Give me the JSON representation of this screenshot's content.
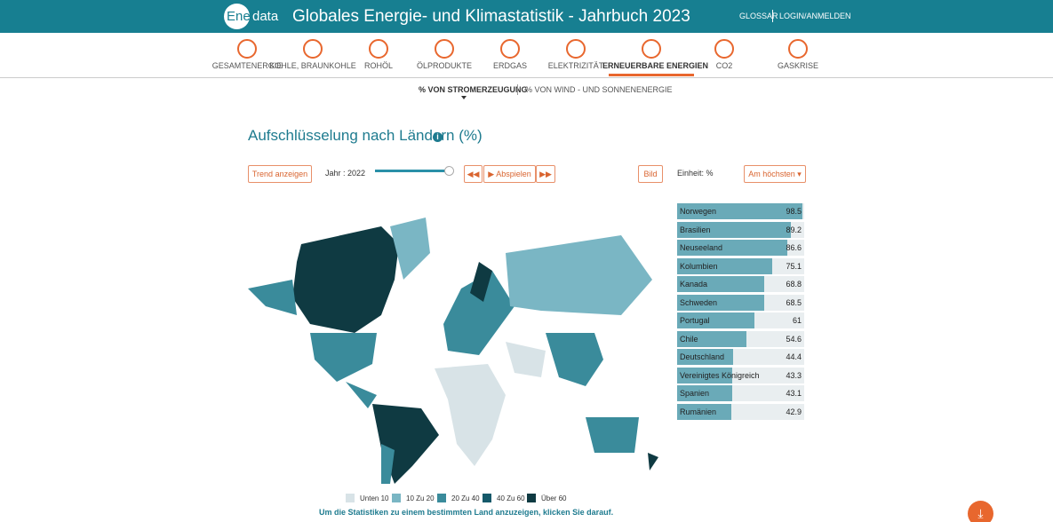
{
  "header": {
    "logo_left": "Ener",
    "logo_right": "data",
    "title": "Globales Energie- und Klimastatistik - Jahrbuch 2023",
    "links": [
      "GLOSSAR",
      "LOGIN/ANMELDEN"
    ]
  },
  "nav": {
    "items": [
      "GESAMTENERGIE",
      "KOHLE, BRAUNKOHLE",
      "ROHÖL",
      "ÖLPRODUKTE",
      "ERDGAS",
      "ELEKTRIZITÄT",
      "ERNEUERBARE ENERGIEN",
      "CO2",
      "GASKRISE"
    ],
    "active": 6
  },
  "subnav": {
    "items": [
      "% VON STROMERZEUGUNG",
      "% VON WIND - UND SONNENENERGIE"
    ],
    "active": 0
  },
  "section_title": "Aufschlüsselung nach Ländern (%)",
  "controls": {
    "trend": "Trend anzeigen",
    "year": "Jahr : 2022",
    "play": "Abspielen",
    "image": "Bild",
    "unit": "Einheit: %",
    "sort": "Am höchsten"
  },
  "ranking": {
    "color": "#6aaab8",
    "scale_max": 100,
    "rows": [
      {
        "name": "Norwegen",
        "value": 98.5
      },
      {
        "name": "Brasilien",
        "value": 89.2
      },
      {
        "name": "Neuseeland",
        "value": 86.6
      },
      {
        "name": "Kolumbien",
        "value": 75.1
      },
      {
        "name": "Kanada",
        "value": 68.8
      },
      {
        "name": "Schweden",
        "value": 68.5
      },
      {
        "name": "Portugal",
        "value": 61
      },
      {
        "name": "Chile",
        "value": 54.6
      },
      {
        "name": "Deutschland",
        "value": 44.4
      },
      {
        "name": "Vereinigtes Königreich",
        "value": 43.3
      },
      {
        "name": "Spanien",
        "value": 43.1
      },
      {
        "name": "Rumänien",
        "value": 42.9
      }
    ]
  },
  "legend": [
    {
      "label": "Unten 10",
      "color": "#d8e3e7"
    },
    {
      "label": "10 Zu 20",
      "color": "#7ab6c4"
    },
    {
      "label": "20 Zu 40",
      "color": "#3a8b9b"
    },
    {
      "label": "40 Zu 60",
      "color": "#15596a"
    },
    {
      "label": "Über 60",
      "color": "#0f3a42"
    }
  ],
  "footnote": "Um die Statistiken zu einem bestimmten Land anzuzeigen, klicken Sie darauf."
}
